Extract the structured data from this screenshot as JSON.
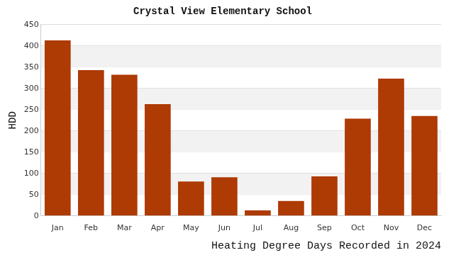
{
  "chart_data": {
    "type": "bar",
    "title": "Crystal View Elementary School",
    "xlabel": "Heating Degree Days Recorded in 2024",
    "ylabel": "HDD",
    "categories": [
      "Jan",
      "Feb",
      "Mar",
      "Apr",
      "May",
      "Jun",
      "Jul",
      "Aug",
      "Sep",
      "Oct",
      "Nov",
      "Dec"
    ],
    "values": [
      413,
      343,
      332,
      263,
      81,
      91,
      13,
      35,
      93,
      229,
      323,
      235
    ],
    "color": "#ae3a04",
    "ylim": [
      0,
      450
    ],
    "yticks": [
      0,
      50,
      100,
      150,
      200,
      250,
      300,
      350,
      400,
      450
    ],
    "grid": true
  }
}
